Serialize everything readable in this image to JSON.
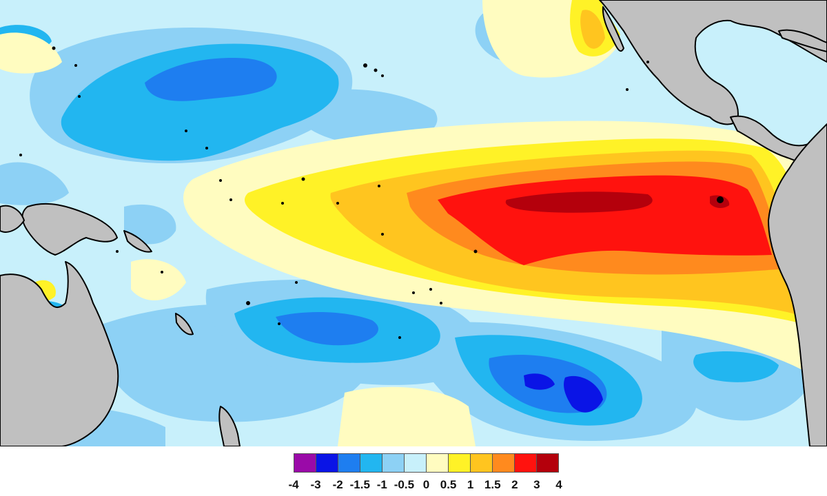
{
  "legend": {
    "colors": [
      "#9a0aa8",
      "#0a14e6",
      "#1e7ef0",
      "#22b6f0",
      "#8dd1f5",
      "#c8f0fb",
      "#fffcc0",
      "#fff227",
      "#ffc51f",
      "#ff8a1e",
      "#ff120e",
      "#b4000c"
    ],
    "ticks": [
      "-4",
      "-3",
      "-2",
      "-1.5",
      "-1",
      "-0.5",
      "0",
      "0.5",
      "1",
      "1.5",
      "2",
      "3",
      "4"
    ]
  },
  "map": {
    "background_anomaly_color": "#c8f0fb",
    "land_color": "#c0c0c0",
    "coast_color": "#000000"
  }
}
